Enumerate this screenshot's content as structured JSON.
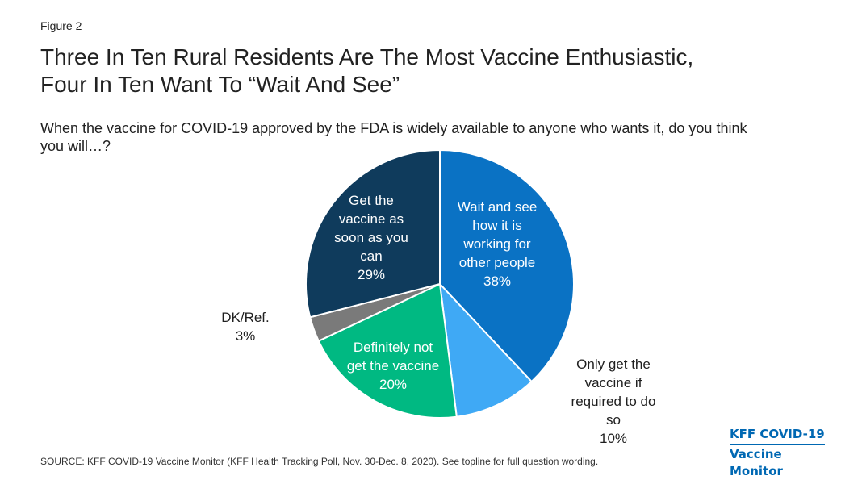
{
  "figure_label": "Figure 2",
  "title_lines": [
    "Three In Ten Rural Residents Are The Most Vaccine Enthusiastic,",
    "Four In Ten Want To “Wait And See”"
  ],
  "subtitle_lines": [
    "When the vaccine for COVID-19 approved by the FDA is widely available to anyone who wants it, do you think",
    "you will…?"
  ],
  "source": "SOURCE: KFF COVID-19 Vaccine Monitor (KFF Health Tracking Poll, Nov. 30-Dec. 8, 2020). See topline for full question wording.",
  "logo": {
    "line1": "KFF COVID-19",
    "line2": "Vaccine Monitor"
  },
  "chart_data": {
    "type": "pie",
    "slices": [
      {
        "label_lines": [
          "Wait and see",
          "how it is",
          "working for",
          "other people",
          "38%"
        ],
        "value": 38,
        "color": "#0a72c4"
      },
      {
        "label_lines": [
          "Only get the",
          "vaccine if",
          "required to do",
          "so",
          "10%"
        ],
        "value": 10,
        "color": "#3fa9f5"
      },
      {
        "label_lines": [
          "Definitely not",
          "get the vaccine",
          "20%"
        ],
        "value": 20,
        "color": "#00b982"
      },
      {
        "label_lines": [
          "DK/Ref.",
          "3%"
        ],
        "value": 3,
        "color": "#7a7a7a"
      },
      {
        "label_lines": [
          "Get the",
          "vaccine as",
          "soon as you",
          "can",
          "29%"
        ],
        "value": 29,
        "color": "#0f3b5c"
      }
    ]
  }
}
